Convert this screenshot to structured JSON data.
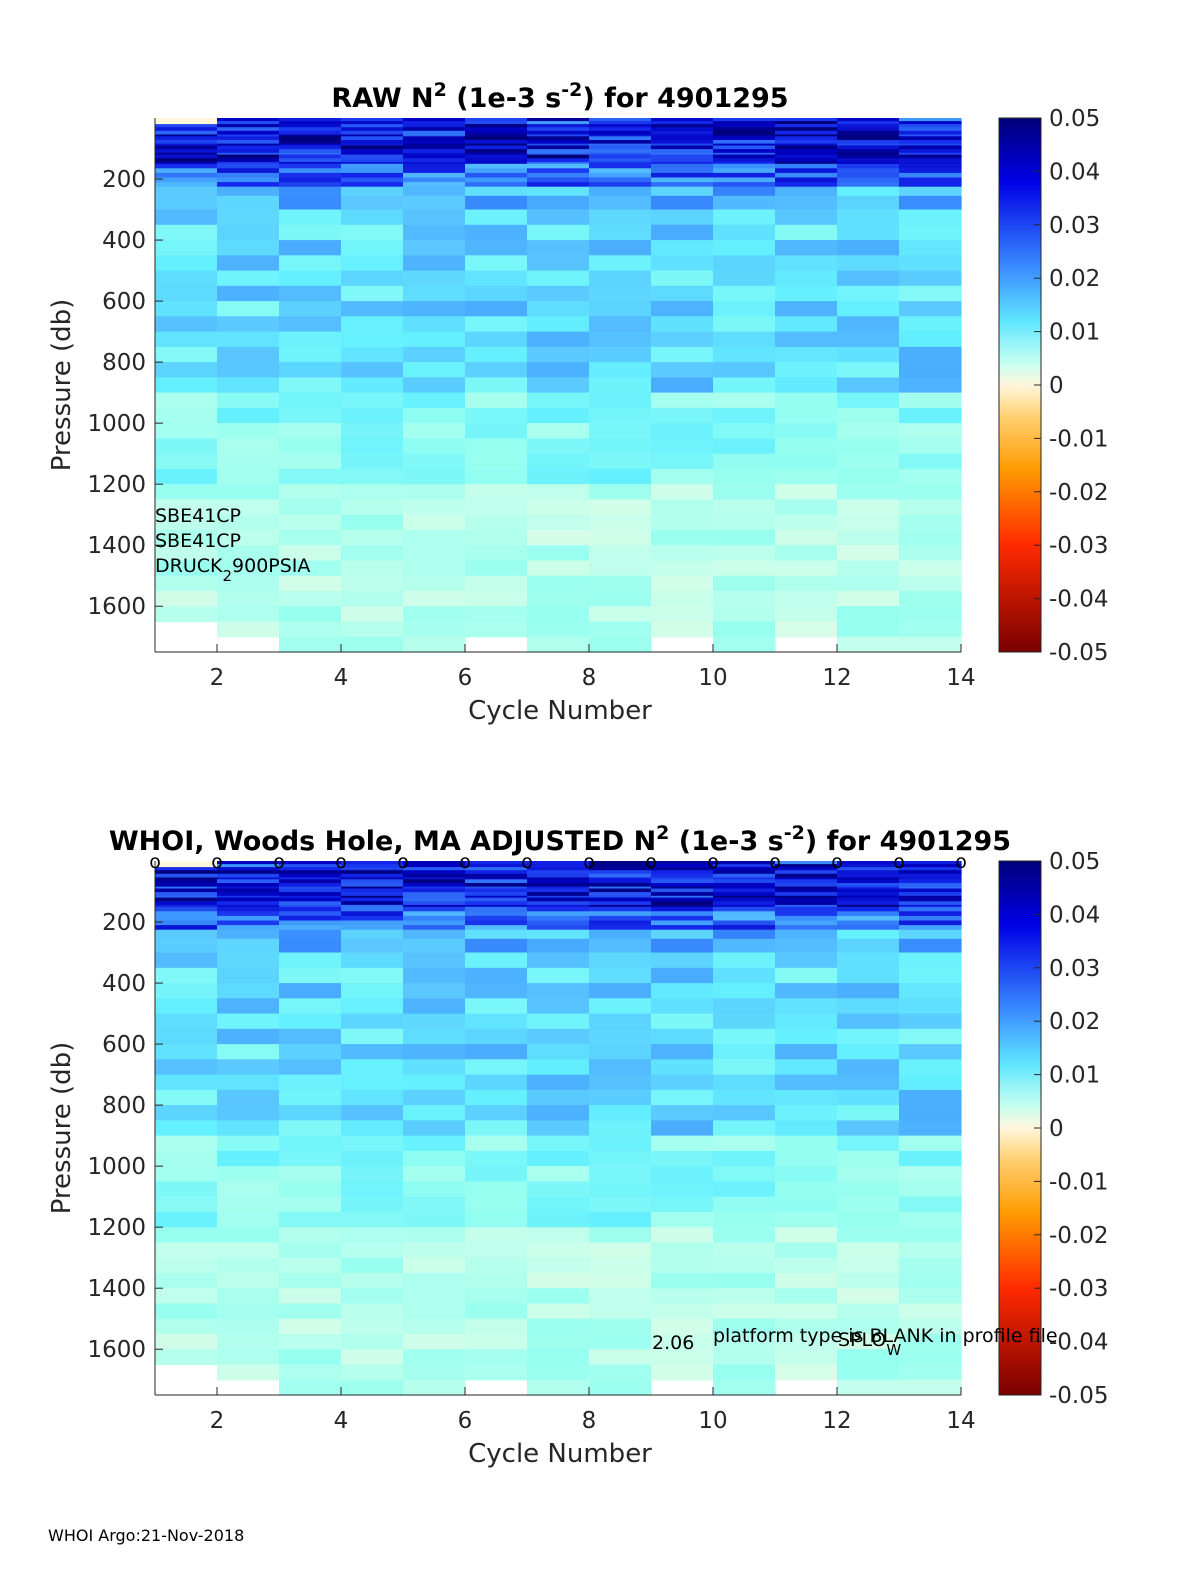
{
  "footer": "WHOI Argo:21-Nov-2018",
  "chart_data": [
    {
      "type": "heatmap",
      "title_parts": [
        "RAW N",
        "2",
        " (1e-3 s",
        "-2",
        ") for 4901295"
      ],
      "xlabel": "Cycle Number",
      "ylabel": "Pressure (db)",
      "x_ticks": [
        2,
        4,
        6,
        8,
        10,
        12,
        14
      ],
      "y_ticks": [
        200,
        400,
        600,
        800,
        1000,
        1200,
        1400,
        1600
      ],
      "xlim": [
        1,
        14
      ],
      "ylim": [
        0,
        1750
      ],
      "y_reversed": true,
      "colorbar": {
        "ticks": [
          "0.05",
          "0.04",
          "0.03",
          "0.02",
          "0.01",
          "0",
          "-0.01",
          "-0.02",
          "-0.03",
          "-0.04",
          "-0.05"
        ],
        "range": [
          -0.05,
          0.05
        ],
        "colormap": "blue-cyan-white-yellow-red"
      },
      "annotations": [
        {
          "text": "SBE41CP"
        },
        {
          "text": "SBE41CP"
        },
        {
          "text_main": "DRUCK",
          "text_sub": "2",
          "text_after": "900PSIA"
        }
      ],
      "cycles": [
        1,
        2,
        3,
        4,
        5,
        6,
        7,
        8,
        9,
        10,
        11,
        12,
        13
      ],
      "max_pressure": [
        1650,
        1700,
        1750,
        1750,
        1750,
        1700,
        1750,
        1750,
        1700,
        1750,
        1700,
        1750,
        1750
      ]
    },
    {
      "type": "heatmap",
      "title_parts": [
        "WHOI, Woods Hole, MA  ADJUSTED N",
        "2",
        " (1e-3 s",
        "-2",
        ") for 4901295"
      ],
      "xlabel": "Cycle Number",
      "ylabel": "Pressure (db)",
      "x_ticks": [
        2,
        4,
        6,
        8,
        10,
        12,
        14
      ],
      "y_ticks": [
        200,
        400,
        600,
        800,
        1000,
        1200,
        1400,
        1600
      ],
      "xlim": [
        1,
        14
      ],
      "ylim": [
        0,
        1750
      ],
      "y_reversed": true,
      "colorbar": {
        "ticks": [
          "0.05",
          "0.04",
          "0.03",
          "0.02",
          "0.01",
          "0",
          "-0.01",
          "-0.02",
          "-0.03",
          "-0.04",
          "-0.05"
        ],
        "range": [
          -0.05,
          0.05
        ],
        "colormap": "blue-cyan-white-yellow-red"
      },
      "top_markers": {
        "symbol": "o",
        "cycles": [
          1,
          2,
          3,
          4,
          5,
          6,
          7,
          8,
          9,
          10,
          11,
          12,
          13,
          14
        ]
      },
      "annotations": [
        {
          "text": "2.06"
        },
        {
          "text": "platform type is BLANK in profile file"
        },
        {
          "text_main": "SPLO",
          "text_sub": "W"
        }
      ],
      "cycles": [
        1,
        2,
        3,
        4,
        5,
        6,
        7,
        8,
        9,
        10,
        11,
        12,
        13
      ],
      "max_pressure": [
        1650,
        1700,
        1750,
        1750,
        1750,
        1700,
        1750,
        1750,
        1700,
        1750,
        1700,
        1750,
        1750
      ]
    }
  ]
}
